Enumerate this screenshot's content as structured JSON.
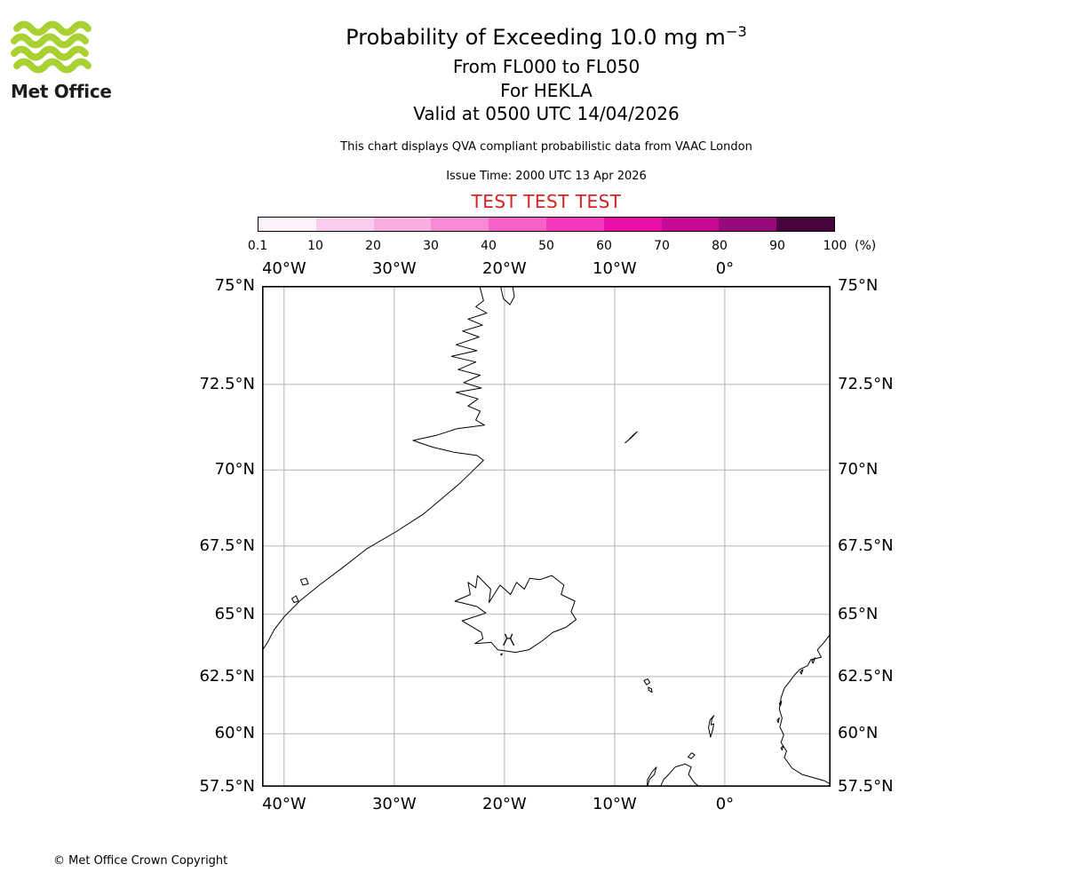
{
  "logo": {
    "text": "Met Office",
    "wave_color": "#a9d132"
  },
  "header": {
    "title": "Probability of Exceeding 10.0 mg m",
    "title_sup": "−3",
    "subtitle_levels": "From FL000 to FL050",
    "subtitle_volcano": "For HEKLA",
    "subtitle_valid": "Valid at 0500 UTC 14/04/2026",
    "description": "This chart displays QVA compliant probabilistic data from VAAC London",
    "issue_time": "Issue Time: 2000 UTC 13 Apr 2026",
    "test_banner": "TEST TEST TEST",
    "test_color": "#d62222"
  },
  "colorbar": {
    "tick_labels": [
      "0.1",
      "10",
      "20",
      "30",
      "40",
      "50",
      "60",
      "70",
      "80",
      "90",
      "100"
    ],
    "unit_label": "(%)",
    "colors": [
      "#fdf2f9",
      "#f9cdec",
      "#f7aee1",
      "#f68ad5",
      "#f562c8",
      "#f338ba",
      "#e90fa8",
      "#c50b94",
      "#960b79",
      "#46033c"
    ]
  },
  "map": {
    "projection": "mercator",
    "lon_min": -42.0,
    "lon_max": 9.6,
    "lat_min": 57.5,
    "lat_max": 75.0,
    "grid_color": "#b3b3b3",
    "lon_ticks": [
      {
        "label": "40°W",
        "lon": -40
      },
      {
        "label": "30°W",
        "lon": -30
      },
      {
        "label": "20°W",
        "lon": -20
      },
      {
        "label": "10°W",
        "lon": -10
      },
      {
        "label": "0°",
        "lon": 0
      }
    ],
    "lat_ticks": [
      {
        "label": "75°N",
        "lat": 75
      },
      {
        "label": "72.5°N",
        "lat": 72.5
      },
      {
        "label": "70°N",
        "lat": 70
      },
      {
        "label": "67.5°N",
        "lat": 67.5
      },
      {
        "label": "65°N",
        "lat": 65
      },
      {
        "label": "62.5°N",
        "lat": 62.5
      },
      {
        "label": "60°N",
        "lat": 60
      },
      {
        "label": "57.5°N",
        "lat": 57.5
      }
    ],
    "volcano": {
      "name": "HEKLA",
      "lon": -19.62,
      "lat": 63.99
    },
    "coastlines": [
      {
        "name": "greenland-east-coast",
        "closed": false,
        "points": [
          [
            -22.3,
            75.05
          ],
          [
            -21.9,
            74.65
          ],
          [
            -22.6,
            74.5
          ],
          [
            -21.6,
            74.35
          ],
          [
            -23.3,
            74.2
          ],
          [
            -22.0,
            74.05
          ],
          [
            -23.8,
            73.9
          ],
          [
            -22.3,
            73.75
          ],
          [
            -24.4,
            73.55
          ],
          [
            -22.5,
            73.4
          ],
          [
            -24.8,
            73.25
          ],
          [
            -22.6,
            73.1
          ],
          [
            -24.2,
            72.9
          ],
          [
            -22.2,
            72.75
          ],
          [
            -23.7,
            72.55
          ],
          [
            -22.1,
            72.4
          ],
          [
            -24.4,
            72.28
          ],
          [
            -22.4,
            72.1
          ],
          [
            -23.3,
            71.9
          ],
          [
            -22.2,
            71.75
          ],
          [
            -22.6,
            71.5
          ],
          [
            -21.8,
            71.35
          ],
          [
            -24.3,
            71.25
          ],
          [
            -26.2,
            71.05
          ],
          [
            -28.3,
            70.9
          ],
          [
            -26.5,
            70.7
          ],
          [
            -24.6,
            70.55
          ],
          [
            -22.5,
            70.45
          ],
          [
            -21.9,
            70.3
          ],
          [
            -22.8,
            70.0
          ],
          [
            -24.0,
            69.6
          ],
          [
            -25.5,
            69.15
          ],
          [
            -27.3,
            68.6
          ],
          [
            -29.8,
            68.0
          ],
          [
            -32.5,
            67.4
          ],
          [
            -34.8,
            66.7
          ],
          [
            -36.8,
            66.1
          ],
          [
            -38.6,
            65.5
          ],
          [
            -40.0,
            64.9
          ],
          [
            -40.9,
            64.4
          ],
          [
            -41.5,
            63.9
          ],
          [
            -42.1,
            63.5
          ]
        ]
      },
      {
        "name": "greenland-north-peninsula",
        "closed": false,
        "points": [
          [
            -20.4,
            75.05
          ],
          [
            -20.1,
            74.7
          ],
          [
            -19.5,
            74.55
          ],
          [
            -19.1,
            74.75
          ],
          [
            -19.3,
            75.05
          ]
        ]
      },
      {
        "name": "greenland-offshore-island-1",
        "closed": true,
        "points": [
          [
            -38.5,
            66.3
          ],
          [
            -38.0,
            66.35
          ],
          [
            -37.8,
            66.15
          ],
          [
            -38.3,
            66.1
          ]
        ]
      },
      {
        "name": "greenland-offshore-island-2",
        "closed": true,
        "points": [
          [
            -39.3,
            65.6
          ],
          [
            -38.9,
            65.7
          ],
          [
            -38.7,
            65.5
          ],
          [
            -39.1,
            65.45
          ]
        ]
      },
      {
        "name": "iceland",
        "closed": true,
        "points": [
          [
            -22.7,
            63.85
          ],
          [
            -21.2,
            63.9
          ],
          [
            -20.6,
            63.6
          ],
          [
            -19.0,
            63.5
          ],
          [
            -17.8,
            63.6
          ],
          [
            -16.6,
            63.95
          ],
          [
            -15.6,
            64.3
          ],
          [
            -14.4,
            64.5
          ],
          [
            -13.5,
            64.8
          ],
          [
            -13.95,
            65.1
          ],
          [
            -13.6,
            65.5
          ],
          [
            -14.85,
            65.75
          ],
          [
            -14.6,
            66.1
          ],
          [
            -15.7,
            66.45
          ],
          [
            -16.8,
            66.3
          ],
          [
            -17.7,
            66.35
          ],
          [
            -18.2,
            65.95
          ],
          [
            -18.9,
            66.2
          ],
          [
            -19.45,
            65.75
          ],
          [
            -20.4,
            66.1
          ],
          [
            -21.4,
            65.45
          ],
          [
            -21.25,
            65.95
          ],
          [
            -22.45,
            66.45
          ],
          [
            -22.6,
            66.0
          ],
          [
            -23.3,
            66.2
          ],
          [
            -23.1,
            65.75
          ],
          [
            -24.5,
            65.5
          ],
          [
            -22.5,
            65.3
          ],
          [
            -21.7,
            65.05
          ],
          [
            -22.4,
            64.95
          ],
          [
            -23.85,
            64.75
          ],
          [
            -22.1,
            64.3
          ],
          [
            -21.95,
            64.05
          ]
        ]
      },
      {
        "name": "vestmannaeyjar-island",
        "closed": true,
        "points": [
          [
            -20.35,
            63.42
          ],
          [
            -20.2,
            63.45
          ],
          [
            -20.25,
            63.38
          ]
        ]
      },
      {
        "name": "jan-mayen-island",
        "closed": true,
        "points": [
          [
            -9.05,
            70.83
          ],
          [
            -8.5,
            70.98
          ],
          [
            -7.95,
            71.16
          ],
          [
            -8.35,
            71.05
          ],
          [
            -8.85,
            70.88
          ]
        ]
      },
      {
        "name": "faroe-island-north",
        "closed": true,
        "points": [
          [
            -7.35,
            62.33
          ],
          [
            -7.0,
            62.4
          ],
          [
            -6.8,
            62.25
          ],
          [
            -7.1,
            62.15
          ]
        ]
      },
      {
        "name": "faroe-island-south",
        "closed": true,
        "points": [
          [
            -6.95,
            62.05
          ],
          [
            -6.65,
            61.98
          ],
          [
            -6.6,
            61.83
          ],
          [
            -6.9,
            61.92
          ]
        ]
      },
      {
        "name": "shetland-islands",
        "closed": true,
        "points": [
          [
            -1.3,
            59.85
          ],
          [
            -1.08,
            60.2
          ],
          [
            -1.0,
            60.45
          ],
          [
            -1.25,
            60.4
          ],
          [
            -1.18,
            60.65
          ],
          [
            -0.98,
            60.82
          ],
          [
            -1.35,
            60.62
          ],
          [
            -1.48,
            60.28
          ]
        ]
      },
      {
        "name": "orkney-islands",
        "closed": true,
        "points": [
          [
            -3.35,
            58.92
          ],
          [
            -3.0,
            59.12
          ],
          [
            -2.72,
            59.02
          ],
          [
            -3.05,
            58.85
          ]
        ]
      },
      {
        "name": "scotland-north-coast",
        "closed": false,
        "points": [
          [
            -5.9,
            57.45
          ],
          [
            -5.55,
            57.85
          ],
          [
            -5.1,
            58.1
          ],
          [
            -4.5,
            58.45
          ],
          [
            -3.6,
            58.6
          ],
          [
            -3.05,
            58.45
          ],
          [
            -3.3,
            58.1
          ],
          [
            -2.75,
            57.7
          ],
          [
            -2.2,
            57.45
          ]
        ]
      },
      {
        "name": "outer-hebrides",
        "closed": false,
        "points": [
          [
            -7.05,
            57.45
          ],
          [
            -6.85,
            57.85
          ],
          [
            -6.4,
            58.1
          ],
          [
            -6.2,
            58.45
          ],
          [
            -6.6,
            58.22
          ],
          [
            -7.02,
            57.85
          ],
          [
            -7.05,
            57.45
          ]
        ]
      },
      {
        "name": "norway-west-coast",
        "closed": false,
        "points": [
          [
            9.7,
            64.3
          ],
          [
            9.0,
            63.9
          ],
          [
            8.4,
            63.6
          ],
          [
            8.75,
            63.3
          ],
          [
            7.8,
            63.2
          ],
          [
            7.5,
            62.95
          ],
          [
            6.8,
            62.8
          ],
          [
            6.3,
            62.55
          ],
          [
            5.9,
            62.3
          ],
          [
            5.4,
            62.0
          ],
          [
            5.1,
            61.6
          ],
          [
            4.95,
            61.1
          ],
          [
            5.2,
            60.7
          ],
          [
            5.0,
            60.3
          ],
          [
            5.35,
            59.95
          ],
          [
            5.1,
            59.6
          ],
          [
            5.6,
            59.2
          ],
          [
            5.4,
            58.9
          ],
          [
            6.1,
            58.4
          ],
          [
            7.0,
            58.1
          ],
          [
            8.0,
            57.95
          ],
          [
            9.0,
            57.8
          ],
          [
            9.7,
            57.6
          ]
        ]
      },
      {
        "name": "norway-island-1",
        "closed": true,
        "points": [
          [
            7.9,
            63.15
          ],
          [
            8.2,
            63.28
          ],
          [
            8.0,
            63.05
          ]
        ]
      },
      {
        "name": "norway-island-2",
        "closed": true,
        "points": [
          [
            6.85,
            62.7
          ],
          [
            7.1,
            62.8
          ],
          [
            6.95,
            62.6
          ]
        ]
      },
      {
        "name": "norway-island-3",
        "closed": true,
        "points": [
          [
            4.95,
            61.35
          ],
          [
            5.15,
            61.45
          ],
          [
            5.05,
            61.25
          ]
        ]
      },
      {
        "name": "norway-island-4",
        "closed": true,
        "points": [
          [
            4.75,
            60.6
          ],
          [
            4.95,
            60.72
          ],
          [
            4.85,
            60.5
          ]
        ]
      },
      {
        "name": "norway-island-5",
        "closed": true,
        "points": [
          [
            5.1,
            59.35
          ],
          [
            5.3,
            59.45
          ],
          [
            5.2,
            59.25
          ]
        ]
      }
    ]
  },
  "footer": {
    "copyright": "© Met Office Crown Copyright"
  }
}
